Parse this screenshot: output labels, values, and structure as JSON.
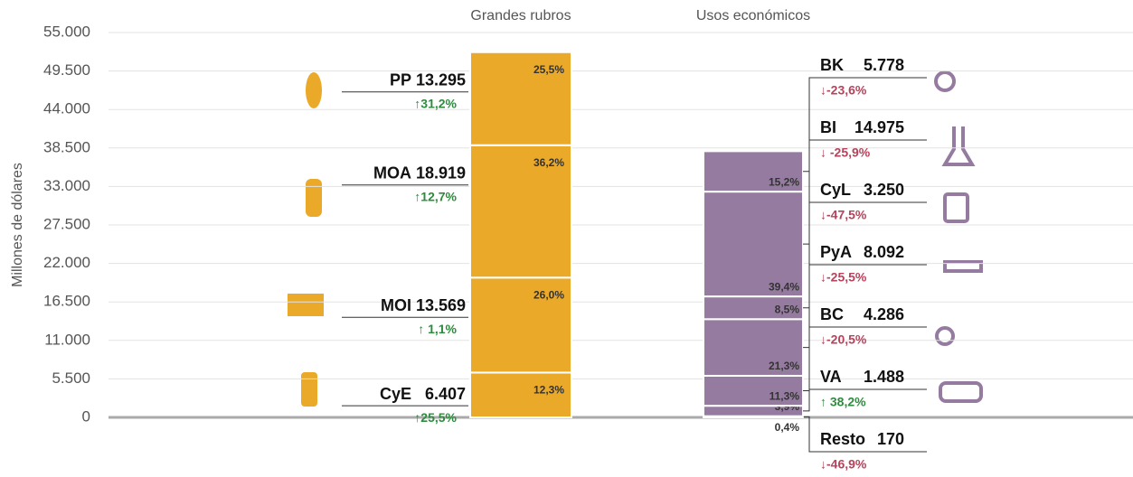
{
  "chart_data": {
    "type": "stacked_bar",
    "ylabel": "Millones de dólares",
    "ylim": [
      0,
      55000
    ],
    "yticks": [
      0,
      {
        "value": 5500,
        "label": "5.500"
      },
      {
        "value": 11000,
        "label": "11.000"
      },
      {
        "value": 16500,
        "label": "16.500"
      },
      {
        "value": 22000,
        "label": "22.000"
      },
      {
        "value": 27500,
        "label": "27.500"
      },
      {
        "value": 33000,
        "label": "33.000"
      },
      {
        "value": 38500,
        "label": "38.500"
      },
      {
        "value": 44000,
        "label": "44.000"
      },
      {
        "value": 49500,
        "label": "49.500"
      },
      {
        "value": 55000,
        "label": "55.000"
      }
    ],
    "grid": true,
    "groups": [
      {
        "name": "Grandes rubros",
        "color": "#eaa928",
        "categories": [
          "CyE",
          "MOI",
          "MOA",
          "PP"
        ],
        "values": [
          6407,
          13569,
          18919,
          13295
        ],
        "value_labels": [
          "6.407",
          "13.569",
          "18.919",
          "13.295"
        ],
        "shares": [
          12.3,
          26.0,
          36.2,
          25.5
        ],
        "share_labels": [
          "12,3%",
          "26,0%",
          "36,2%",
          "25,5%"
        ],
        "changes": [
          25.5,
          1.1,
          12.7,
          31.2
        ],
        "change_labels": [
          "↑25,5%",
          "↑ 1,1%",
          "↑12,7%",
          "↑31,2%"
        ]
      },
      {
        "name": "Usos económicos",
        "color": "#957ba0",
        "categories": [
          "Resto",
          "VA",
          "BC",
          "PyA",
          "CyL",
          "BI",
          "BK"
        ],
        "values": [
          170,
          1488,
          4286,
          8092,
          3250,
          14975,
          5778
        ],
        "value_labels": [
          "170",
          "1.488",
          "4.286",
          "8.092",
          "3.250",
          "14.975",
          "5.778"
        ],
        "shares": [
          0.4,
          3.9,
          11.3,
          21.3,
          8.5,
          39.4,
          15.2
        ],
        "share_labels": [
          "0,4%",
          "3,9%",
          "11,3%",
          "21,3%",
          "8,5%",
          "39,4%",
          "15,2%"
        ],
        "changes": [
          -46.9,
          38.2,
          -20.5,
          -25.5,
          -47.5,
          -25.9,
          -23.6
        ],
        "change_labels": [
          "↓-46,9%",
          "↑ 38,2%",
          "↓-20,5%",
          "↓-25,5%",
          "↓-47,5%",
          "↓ -25,9%",
          "↓-23,6%"
        ]
      }
    ]
  }
}
